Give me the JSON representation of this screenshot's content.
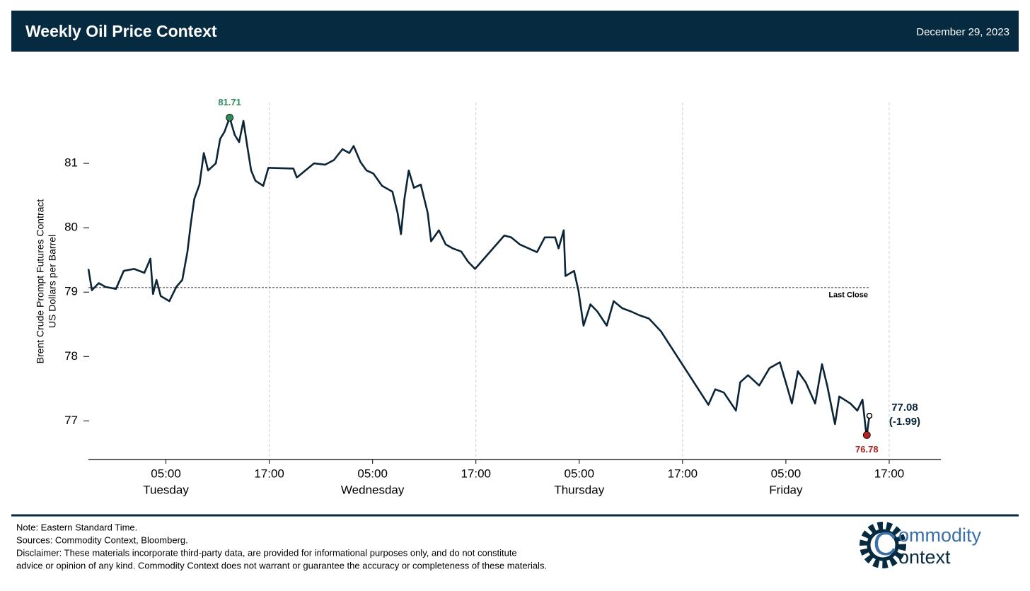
{
  "header": {
    "title": "Weekly Oil Price Context",
    "date": "December 29, 2023"
  },
  "chart_data": {
    "type": "line",
    "ylabel": [
      "Brent Crude Prompt Futures Contract",
      "US Dollars per Barrel"
    ],
    "x": [
      -4.0,
      -3.6,
      -2.8,
      -2.0,
      -0.8,
      0.1,
      1.3,
      2.5,
      3.2,
      3.5,
      3.9,
      4.4,
      5.4,
      6.2,
      6.9,
      7.5,
      7.9,
      8.3,
      8.9,
      9.4,
      9.9,
      10.8,
      11.3,
      11.8,
      12.4,
      13.0,
      13.5,
      14.0,
      14.5,
      14.9,
      15.4,
      16.3,
      16.9,
      19.8,
      20.2,
      21.2,
      22.2,
      23.5,
      24.5,
      25.5,
      26.3,
      26.8,
      27.6,
      28.3,
      29.1,
      30.1,
      31.3,
      31.9,
      32.3,
      32.7,
      33.2,
      33.8,
      34.6,
      35.4,
      35.8,
      36.7,
      37.5,
      38.3,
      39.3,
      40.1,
      40.9,
      44.3,
      45.1,
      46.1,
      48.1,
      49.0,
      50.2,
      50.6,
      51.2,
      51.4,
      52.4,
      52.9,
      53.5,
      54.3,
      55.1,
      56.2,
      57.0,
      58.0,
      59.0,
      60.0,
      61.1,
      62.5,
      68.0,
      68.8,
      69.8,
      71.2,
      71.7,
      72.6,
      73.9,
      75.1,
      76.3,
      77.1,
      77.7,
      78.4,
      79.3,
      80.4,
      81.2,
      81.8,
      82.7,
      83.2,
      84.5,
      85.3,
      85.9,
      86.3,
      86.4,
      86.7
    ],
    "values": [
      79.36,
      79.03,
      79.14,
      79.08,
      79.05,
      79.33,
      79.36,
      79.3,
      79.52,
      78.97,
      79.19,
      78.94,
      78.86,
      79.08,
      79.19,
      79.63,
      80.07,
      80.45,
      80.67,
      81.16,
      80.89,
      81.0,
      81.38,
      81.49,
      81.71,
      81.44,
      81.33,
      81.66,
      81.22,
      80.89,
      80.73,
      80.65,
      80.93,
      80.92,
      80.78,
      80.89,
      81.0,
      80.98,
      81.05,
      81.22,
      81.16,
      81.27,
      81.02,
      80.89,
      80.84,
      80.65,
      80.56,
      80.23,
      79.9,
      80.45,
      80.89,
      80.62,
      80.67,
      80.23,
      79.79,
      79.96,
      79.74,
      79.68,
      79.63,
      79.47,
      79.36,
      79.88,
      79.85,
      79.74,
      79.62,
      79.85,
      79.85,
      79.68,
      79.96,
      79.25,
      79.33,
      79.03,
      78.48,
      78.81,
      78.7,
      78.48,
      78.86,
      78.75,
      78.7,
      78.64,
      78.59,
      78.39,
      77.25,
      77.49,
      77.44,
      77.16,
      77.6,
      77.71,
      77.55,
      77.82,
      77.91,
      77.55,
      77.27,
      77.77,
      77.6,
      77.27,
      77.88,
      77.55,
      76.95,
      77.38,
      77.27,
      77.16,
      77.33,
      76.84,
      76.78,
      77.08
    ],
    "color": "#0b2537",
    "xlim": [
      -4,
      95
    ],
    "ylim": [
      76.4,
      82.0
    ],
    "yticks": [
      77,
      78,
      79,
      80,
      81
    ],
    "xticks": [
      {
        "value": 5,
        "label": "05:00"
      },
      {
        "value": 17,
        "label": "17:00"
      },
      {
        "value": 29,
        "label": "05:00"
      },
      {
        "value": 41,
        "label": "17:00"
      },
      {
        "value": 53,
        "label": "05:00"
      },
      {
        "value": 65,
        "label": "17:00"
      },
      {
        "value": 77,
        "label": "05:00"
      },
      {
        "value": 89,
        "label": "17:00"
      }
    ],
    "xtick_days": [
      "Tuesday",
      null,
      "Wednesday",
      null,
      "Thursday",
      null,
      "Friday",
      null
    ],
    "high": {
      "x": 12.4,
      "value": 81.71,
      "color": "#2e8b57"
    },
    "low": {
      "x": 86.4,
      "value": 76.78,
      "color": "#b22222"
    },
    "last": {
      "x": 86.7,
      "value": 77.08,
      "change_label": "(-1.99)"
    },
    "last_close": {
      "value": 79.07,
      "label": "Last Close"
    }
  },
  "footer": {
    "notes": [
      "Note: Eastern Standard Time.",
      "Sources: Commodity Context, Bloomberg.",
      "Disclaimer: These materials incorporate third-party data, are provided for informational purposes only, and do not constitute",
      "advice or opinion of any kind. Commodity Context does not warrant or guarantee the accuracy or completeness of these materials."
    ],
    "logo": [
      "ommodity",
      "ontext"
    ]
  }
}
